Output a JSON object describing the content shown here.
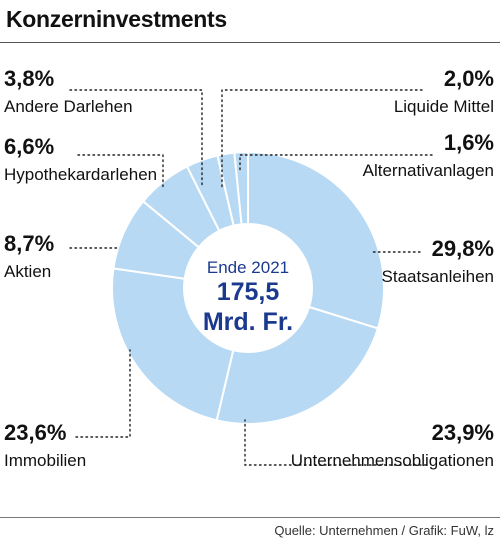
{
  "title": "Konzerninvestments",
  "source": "Quelle: Unternehmen / Grafik: FuW, lz",
  "center": {
    "line1": "Ende 2021",
    "line2": "175,5",
    "line3": "Mrd. Fr."
  },
  "chart_data": {
    "type": "pie",
    "subtype": "donut",
    "title": "Konzerninvestments",
    "total": "175,5 Mrd. Fr.",
    "slices": [
      {
        "label": "Staatsanleihen",
        "value": 29.8,
        "display": "29,8%"
      },
      {
        "label": "Unternehmensobligationen",
        "value": 23.9,
        "display": "23,9%"
      },
      {
        "label": "Immobilien",
        "value": 23.6,
        "display": "23,6%"
      },
      {
        "label": "Aktien",
        "value": 8.7,
        "display": "8,7%"
      },
      {
        "label": "Hypothekardarlehen",
        "value": 6.6,
        "display": "6,6%"
      },
      {
        "label": "Andere Darlehen",
        "value": 3.8,
        "display": "3,8%"
      },
      {
        "label": "Liquide Mittel",
        "value": 2.0,
        "display": "2,0%"
      },
      {
        "label": "Alternativanlagen",
        "value": 1.6,
        "display": "1,6%"
      }
    ],
    "colors": {
      "slice": "#b7d9f3",
      "stroke": "#ffffff",
      "center_text": "#1b3a8f"
    }
  }
}
